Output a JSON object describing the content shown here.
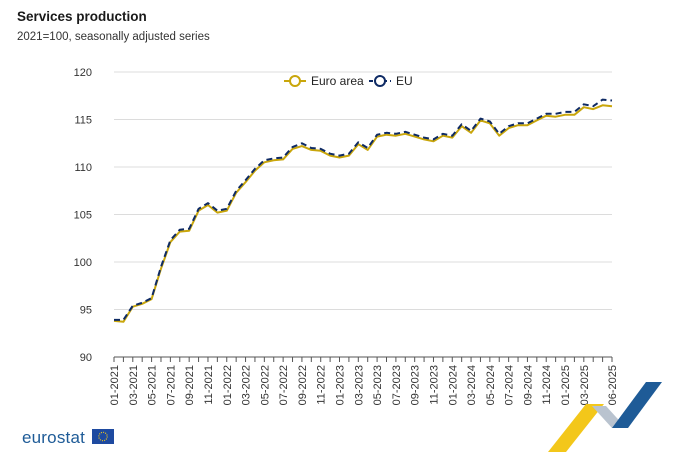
{
  "header": {
    "title": "Services production",
    "subtitle": "2021=100, seasonally adjusted series"
  },
  "colors": {
    "euro_area": "#c9a60b",
    "eu": "#0e2a64",
    "grid": "#dcdcdc",
    "brand_blue": "#1e5b97",
    "brand_yellow": "#f3c71a"
  },
  "branding": {
    "logo_text": "eurostat"
  },
  "chart_data": {
    "type": "line",
    "title": "Services production",
    "subtitle": "2021=100, seasonally adjusted series",
    "xlabel": "",
    "ylabel": "",
    "ylim": [
      90,
      120
    ],
    "yticks": [
      90,
      95,
      100,
      105,
      110,
      115,
      120
    ],
    "grid": true,
    "legend_position": "top-center",
    "x": [
      "01-2021",
      "02-2021",
      "03-2021",
      "04-2021",
      "05-2021",
      "06-2021",
      "07-2021",
      "08-2021",
      "09-2021",
      "10-2021",
      "11-2021",
      "12-2021",
      "01-2022",
      "02-2022",
      "03-2022",
      "04-2022",
      "05-2022",
      "06-2022",
      "07-2022",
      "08-2022",
      "09-2022",
      "10-2022",
      "11-2022",
      "12-2022",
      "01-2023",
      "02-2023",
      "03-2023",
      "04-2023",
      "05-2023",
      "06-2023",
      "07-2023",
      "08-2023",
      "09-2023",
      "10-2023",
      "11-2023",
      "12-2023",
      "01-2024",
      "02-2024",
      "03-2024",
      "04-2024",
      "05-2024",
      "06-2024",
      "07-2024",
      "08-2024",
      "09-2024",
      "10-2024",
      "11-2024",
      "12-2024",
      "01-2025",
      "02-2025",
      "03-2025",
      "04-2025",
      "05-2025",
      "06-2025"
    ],
    "x_tick_labels": [
      "01-2021",
      "03-2021",
      "05-2021",
      "07-2021",
      "09-2021",
      "11-2021",
      "01-2022",
      "03-2022",
      "05-2022",
      "07-2022",
      "09-2022",
      "11-2022",
      "01-2023",
      "03-2023",
      "05-2023",
      "07-2023",
      "09-2023",
      "11-2023",
      "01-2024",
      "03-2024",
      "05-2024",
      "07-2024",
      "09-2024",
      "11-2024",
      "01-2025",
      "03-2025",
      "06-2025"
    ],
    "series": [
      {
        "name": "Euro area",
        "color": "#c9a60b",
        "values": [
          93.8,
          93.7,
          95.3,
          95.6,
          96.1,
          99.3,
          102.1,
          103.2,
          103.3,
          105.4,
          106.0,
          105.2,
          105.4,
          107.3,
          108.4,
          109.6,
          110.5,
          110.7,
          110.8,
          111.9,
          112.2,
          111.8,
          111.7,
          111.2,
          111.0,
          111.2,
          112.4,
          111.8,
          113.2,
          113.4,
          113.3,
          113.5,
          113.2,
          112.9,
          112.7,
          113.3,
          113.1,
          114.3,
          113.6,
          114.9,
          114.6,
          113.3,
          114.1,
          114.4,
          114.4,
          114.9,
          115.4,
          115.3,
          115.5,
          115.5,
          116.3,
          116.1,
          116.5,
          116.4
        ]
      },
      {
        "name": "EU",
        "color": "#0e2a64",
        "values": [
          93.9,
          93.9,
          95.4,
          95.7,
          96.2,
          99.5,
          102.3,
          103.4,
          103.5,
          105.6,
          106.2,
          105.4,
          105.6,
          107.5,
          108.6,
          109.8,
          110.7,
          110.9,
          111.0,
          112.1,
          112.5,
          112.0,
          111.9,
          111.4,
          111.2,
          111.4,
          112.6,
          112.0,
          113.4,
          113.6,
          113.5,
          113.7,
          113.4,
          113.1,
          112.9,
          113.5,
          113.3,
          114.5,
          113.8,
          115.1,
          114.8,
          113.5,
          114.3,
          114.6,
          114.6,
          115.1,
          115.6,
          115.6,
          115.8,
          115.8,
          116.6,
          116.4,
          117.1,
          117.0
        ]
      }
    ]
  }
}
